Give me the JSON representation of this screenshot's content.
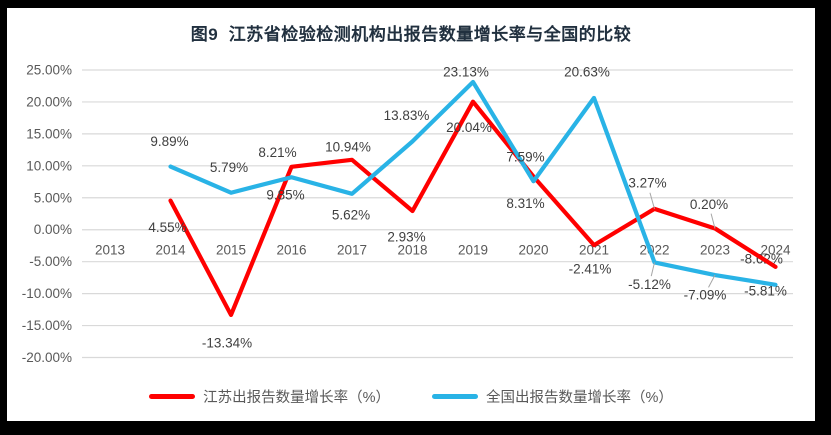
{
  "frame": {
    "border_color": "#000000",
    "canvas_background": "#ffffff"
  },
  "chart_data": {
    "type": "line",
    "title": "图9  江苏省检验检测机构出报告数量增长率与全国的比较",
    "categories": [
      "2013",
      "2014",
      "2015",
      "2016",
      "2017",
      "2018",
      "2019",
      "2020",
      "2021",
      "2022",
      "2023",
      "2024"
    ],
    "series": [
      {
        "name": "江苏出报告数量增长率（%）",
        "color": "#ff0000",
        "values": [
          null,
          4.55,
          -13.34,
          9.85,
          10.94,
          2.93,
          20.04,
          8.31,
          -2.41,
          3.27,
          0.2,
          -5.81
        ]
      },
      {
        "name": "全国出报告数量增长率（%）",
        "color": "#29b3e6",
        "values": [
          null,
          9.89,
          5.79,
          8.21,
          5.62,
          13.83,
          23.13,
          7.59,
          20.63,
          -5.12,
          -7.09,
          -8.62
        ]
      }
    ],
    "data_labels_visible": true,
    "label_format": "0.00%",
    "y_ticks": [
      "25.00%",
      "20.00%",
      "15.00%",
      "10.00%",
      "5.00%",
      "0.00%",
      "-5.00%",
      "-10.00%",
      "-15.00%",
      "-20.00%"
    ],
    "y_tick_values": [
      25,
      20,
      15,
      10,
      5,
      0,
      -5,
      -10,
      -15,
      -20
    ],
    "ylim": [
      -20,
      25
    ],
    "grid": true,
    "gridline_color": "#d9d9d9",
    "axis_text_color": "#595959",
    "data_label_color": "#3f3f3f",
    "leader_line_color": "#a6a6a6",
    "legend_position": "bottom"
  }
}
